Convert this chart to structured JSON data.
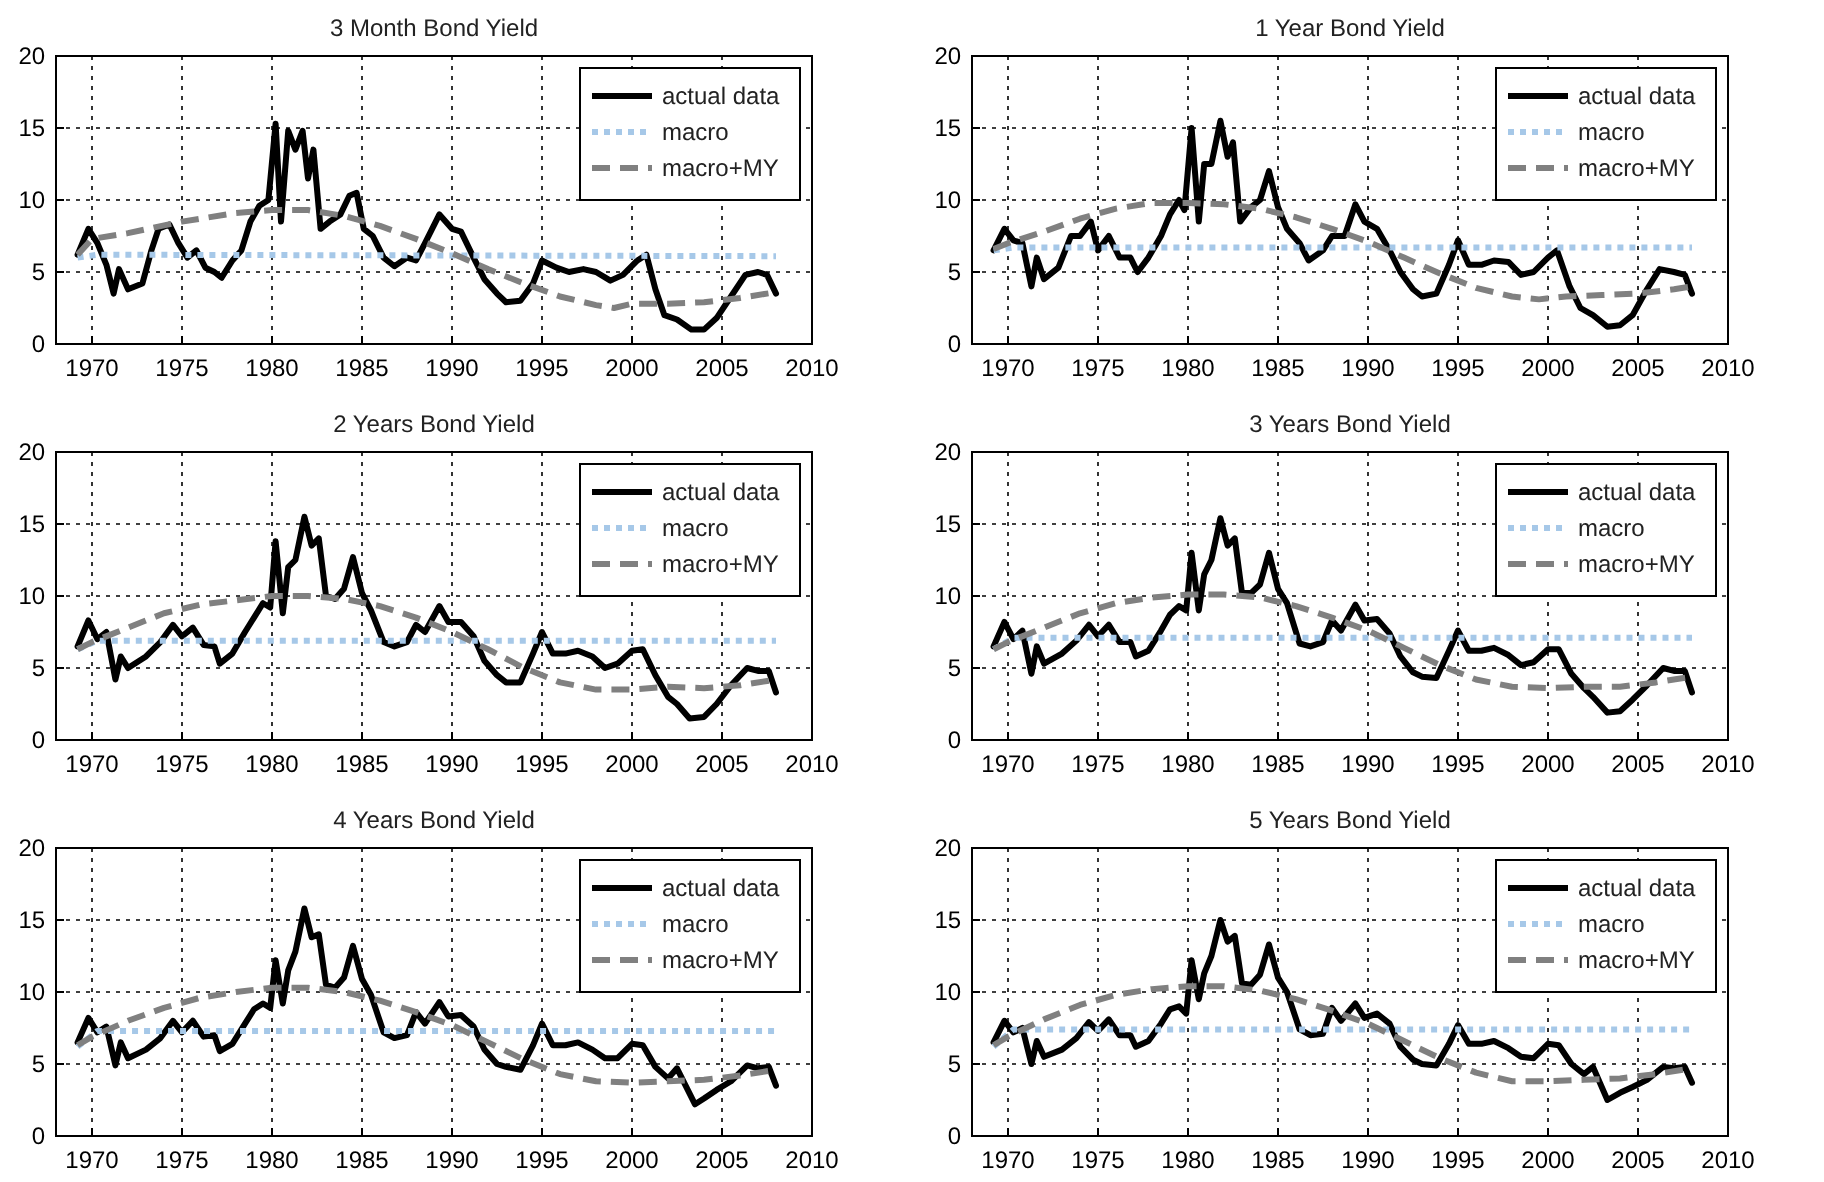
{
  "chart_data": [
    {
      "type": "line",
      "title": "3 Month Bond Yield",
      "xlim": [
        1968,
        2010
      ],
      "xticks": [
        1970,
        1975,
        1980,
        1985,
        1990,
        1995,
        2000,
        2005,
        2010
      ],
      "ylim": [
        0,
        20
      ],
      "yticks": [
        0,
        5,
        10,
        15,
        20
      ],
      "grid": true,
      "legend": "top right",
      "series": [
        {
          "name": "actual data",
          "color": "#000000",
          "line_style": "solid",
          "x": [
            1969.2,
            1969.8,
            1970.3,
            1970.8,
            1971.2,
            1971.5,
            1972,
            1972.8,
            1973.3,
            1973.7,
            1974.3,
            1974.8,
            1975.3,
            1975.8,
            1976.3,
            1976.8,
            1977.2,
            1977.8,
            1978.3,
            1978.8,
            1979.3,
            1979.8,
            1980.2,
            1980.5,
            1980.9,
            1981.3,
            1981.7,
            1982.0,
            1982.3,
            1982.7,
            1983.2,
            1983.8,
            1984.3,
            1984.7,
            1985.1,
            1985.6,
            1986.2,
            1986.8,
            1987.5,
            1988.0,
            1988.5,
            1989.3,
            1990.0,
            1990.5,
            1991.2,
            1991.8,
            1992.5,
            1993.0,
            1993.8,
            1994.5,
            1995.0,
            1995.8,
            1996.5,
            1997.3,
            1998.0,
            1998.8,
            1999.5,
            2000.3,
            2000.8,
            2001.3,
            2001.8,
            2002.5,
            2003.3,
            2004.0,
            2004.7,
            2005.5,
            2006.3,
            2007.0,
            2007.5,
            2008.0
          ],
          "values": [
            6.2,
            8.0,
            7.0,
            5.5,
            3.5,
            5.2,
            3.8,
            4.2,
            6.5,
            8.0,
            8.3,
            7.0,
            6.0,
            6.5,
            5.3,
            5.0,
            4.6,
            5.8,
            6.5,
            8.5,
            9.6,
            10.0,
            15.3,
            8.5,
            14.8,
            13.5,
            14.8,
            11.5,
            13.5,
            8.0,
            8.5,
            9.0,
            10.3,
            10.5,
            8.0,
            7.5,
            6.0,
            5.4,
            6.0,
            5.8,
            7.0,
            9.0,
            8.0,
            7.8,
            6.0,
            4.5,
            3.5,
            2.9,
            3.0,
            4.2,
            5.8,
            5.3,
            5.0,
            5.2,
            5.0,
            4.4,
            4.8,
            5.8,
            6.2,
            3.8,
            2.0,
            1.7,
            1.0,
            1.0,
            1.8,
            3.3,
            4.8,
            5.0,
            4.8,
            3.5
          ]
        },
        {
          "name": "macro",
          "color": "#a6c8e8",
          "line_style": "dotted",
          "x": [
            1969.2,
            1970.3,
            2008
          ],
          "values": [
            6.0,
            6.2,
            6.1
          ]
        },
        {
          "name": "macro+MY",
          "color": "#808080",
          "line_style": "dashed",
          "x": [
            1969.2,
            1970,
            1972,
            1975,
            1978,
            1980,
            1982,
            1984,
            1986,
            1988,
            1990,
            1992,
            1994,
            1996,
            1998,
            1999,
            2000,
            2002,
            2004,
            2006,
            2008
          ],
          "values": [
            6.2,
            7.3,
            7.7,
            8.5,
            9.1,
            9.3,
            9.3,
            8.9,
            8.2,
            7.3,
            6.3,
            5.2,
            4.2,
            3.3,
            2.7,
            2.5,
            2.8,
            2.8,
            2.9,
            3.2,
            3.6
          ]
        }
      ]
    },
    {
      "type": "line",
      "title": "1 Year Bond Yield",
      "xlim": [
        1968,
        2010
      ],
      "xticks": [
        1970,
        1975,
        1980,
        1985,
        1990,
        1995,
        2000,
        2005,
        2010
      ],
      "ylim": [
        0,
        20
      ],
      "yticks": [
        0,
        5,
        10,
        15,
        20
      ],
      "grid": true,
      "legend": "top right",
      "series": [
        {
          "name": "actual data",
          "color": "#000000",
          "line_style": "solid",
          "x": [
            1969.2,
            1969.8,
            1970.3,
            1970.8,
            1971.3,
            1971.6,
            1972,
            1972.8,
            1973.5,
            1974.0,
            1974.6,
            1975.0,
            1975.6,
            1976.2,
            1976.8,
            1977.2,
            1977.8,
            1978.5,
            1979.0,
            1979.5,
            1979.8,
            1980.2,
            1980.6,
            1980.9,
            1981.3,
            1981.8,
            1982.2,
            1982.5,
            1982.9,
            1983.5,
            1984.0,
            1984.5,
            1985.0,
            1985.5,
            1986.2,
            1986.7,
            1987.5,
            1988.0,
            1988.7,
            1989.3,
            1989.8,
            1990.5,
            1991.2,
            1991.8,
            1992.5,
            1993.0,
            1993.8,
            1994.5,
            1995.0,
            1995.6,
            1996.3,
            1997.0,
            1997.8,
            1998.5,
            1999.2,
            2000.0,
            2000.5,
            2001.2,
            2001.8,
            2002.5,
            2003.3,
            2004.0,
            2004.7,
            2005.5,
            2006.2,
            2007.0,
            2007.6,
            2008.0
          ],
          "values": [
            6.5,
            8.0,
            7.2,
            7.0,
            4.0,
            6.0,
            4.5,
            5.3,
            7.5,
            7.5,
            8.5,
            6.5,
            7.5,
            6.0,
            6.0,
            5.0,
            6.0,
            7.5,
            9.0,
            10.0,
            9.3,
            15.0,
            8.5,
            12.5,
            12.5,
            15.5,
            13.0,
            14.0,
            8.5,
            9.5,
            10.0,
            12.0,
            9.5,
            8.0,
            7.0,
            5.8,
            6.5,
            7.5,
            7.5,
            9.7,
            8.5,
            8.0,
            6.5,
            5.0,
            3.8,
            3.3,
            3.5,
            5.5,
            7.2,
            5.5,
            5.5,
            5.8,
            5.7,
            4.8,
            5.0,
            6.0,
            6.5,
            4.0,
            2.5,
            2.0,
            1.2,
            1.3,
            2.0,
            3.8,
            5.2,
            5.0,
            4.8,
            3.5
          ]
        },
        {
          "name": "macro",
          "color": "#a6c8e8",
          "line_style": "dotted",
          "x": [
            1969.2,
            1970.3,
            2008
          ],
          "values": [
            6.5,
            6.7,
            6.7
          ]
        },
        {
          "name": "macro+MY",
          "color": "#808080",
          "line_style": "dashed",
          "x": [
            1969.2,
            1970,
            1972,
            1974,
            1976,
            1978,
            1980,
            1982,
            1984,
            1986,
            1988,
            1990,
            1992,
            1994,
            1996,
            1998,
            1999.5,
            2001,
            2003,
            2005,
            2007,
            2008
          ],
          "values": [
            6.6,
            7.0,
            7.8,
            8.7,
            9.4,
            9.8,
            9.8,
            9.7,
            9.4,
            8.8,
            8.0,
            7.1,
            6.0,
            4.9,
            3.9,
            3.3,
            3.1,
            3.3,
            3.4,
            3.5,
            3.8,
            4.0
          ]
        }
      ]
    },
    {
      "type": "line",
      "title": "2 Years Bond Yield",
      "xlim": [
        1968,
        2010
      ],
      "xticks": [
        1970,
        1975,
        1980,
        1985,
        1990,
        1995,
        2000,
        2005,
        2010
      ],
      "ylim": [
        0,
        20
      ],
      "yticks": [
        0,
        5,
        10,
        15,
        20
      ],
      "grid": true,
      "legend": "top right",
      "series": [
        {
          "name": "actual data",
          "color": "#000000",
          "line_style": "solid",
          "x": [
            1969.2,
            1969.8,
            1970.3,
            1970.8,
            1971.3,
            1971.6,
            1972,
            1973,
            1973.8,
            1974.5,
            1975.0,
            1975.6,
            1976.2,
            1976.8,
            1977.1,
            1977.8,
            1978.5,
            1979.0,
            1979.5,
            1979.9,
            1980.2,
            1980.6,
            1980.9,
            1981.3,
            1981.8,
            1982.2,
            1982.6,
            1983.0,
            1983.5,
            1984.0,
            1984.5,
            1985.0,
            1985.5,
            1986.2,
            1986.8,
            1987.5,
            1988.0,
            1988.5,
            1989.3,
            1989.8,
            1990.5,
            1991.2,
            1991.8,
            1992.5,
            1993.0,
            1993.8,
            1994.5,
            1995.0,
            1995.6,
            1996.3,
            1997.0,
            1997.8,
            1998.5,
            1999.2,
            2000.0,
            2000.6,
            2001.3,
            2002.0,
            2002.5,
            2003.2,
            2004.0,
            2004.7,
            2005.5,
            2006.4,
            2007.0,
            2007.6,
            2008.0
          ],
          "values": [
            6.5,
            8.3,
            7.0,
            7.5,
            4.2,
            5.8,
            5.0,
            5.8,
            6.8,
            8.0,
            7.2,
            7.8,
            6.6,
            6.5,
            5.3,
            6.0,
            7.5,
            8.5,
            9.5,
            9.2,
            13.8,
            8.8,
            12.0,
            12.5,
            15.5,
            13.5,
            14.0,
            10.0,
            9.8,
            10.5,
            12.7,
            10.2,
            9.0,
            6.8,
            6.5,
            6.8,
            8.0,
            7.5,
            9.3,
            8.2,
            8.2,
            7.2,
            5.5,
            4.5,
            4.0,
            4.0,
            6.0,
            7.5,
            6.0,
            6.0,
            6.2,
            5.8,
            5.0,
            5.3,
            6.2,
            6.3,
            4.5,
            3.0,
            2.5,
            1.5,
            1.6,
            2.5,
            3.8,
            5.0,
            4.8,
            4.8,
            3.3
          ]
        },
        {
          "name": "macro",
          "color": "#a6c8e8",
          "line_style": "dotted",
          "x": [
            1969.2,
            1970.3,
            2008
          ],
          "values": [
            6.3,
            6.9,
            6.9
          ]
        },
        {
          "name": "macro+MY",
          "color": "#808080",
          "line_style": "dashed",
          "x": [
            1969.2,
            1970,
            1972,
            1974,
            1976,
            1978,
            1980,
            1982,
            1984,
            1986,
            1988,
            1990,
            1992,
            1994,
            1996,
            1998,
            2000,
            2002,
            2004,
            2006,
            2008
          ],
          "values": [
            6.3,
            6.8,
            7.8,
            8.8,
            9.4,
            9.7,
            10.0,
            10.0,
            9.8,
            9.3,
            8.5,
            7.5,
            6.3,
            5.0,
            4.0,
            3.5,
            3.5,
            3.7,
            3.6,
            3.8,
            4.2
          ]
        }
      ]
    },
    {
      "type": "line",
      "title": "3 Years Bond Yield",
      "xlim": [
        1968,
        2010
      ],
      "xticks": [
        1970,
        1975,
        1980,
        1985,
        1990,
        1995,
        2000,
        2005,
        2010
      ],
      "ylim": [
        0,
        20
      ],
      "yticks": [
        0,
        5,
        10,
        15,
        20
      ],
      "grid": true,
      "legend": "top right",
      "series": [
        {
          "name": "actual data",
          "color": "#000000",
          "line_style": "solid",
          "x": [
            1969.2,
            1969.8,
            1970.3,
            1970.8,
            1971.3,
            1971.6,
            1972,
            1973,
            1973.8,
            1974.5,
            1975.0,
            1975.6,
            1976.2,
            1976.8,
            1977.1,
            1977.8,
            1978.5,
            1979.0,
            1979.5,
            1979.9,
            1980.2,
            1980.6,
            1980.9,
            1981.3,
            1981.8,
            1982.2,
            1982.6,
            1983.0,
            1983.5,
            1984.0,
            1984.5,
            1985.0,
            1985.5,
            1986.2,
            1986.8,
            1987.5,
            1988.0,
            1988.5,
            1989.3,
            1989.8,
            1990.5,
            1991.2,
            1991.8,
            1992.5,
            1993.0,
            1993.8,
            1994.5,
            1995.0,
            1995.6,
            1996.3,
            1997.0,
            1997.8,
            1998.5,
            1999.2,
            2000.0,
            2000.6,
            2001.3,
            2002.0,
            2002.5,
            2003.3,
            2004.0,
            2004.7,
            2005.5,
            2006.4,
            2007.0,
            2007.6,
            2008.0
          ],
          "values": [
            6.5,
            8.2,
            7.0,
            7.6,
            4.6,
            6.5,
            5.3,
            6.0,
            6.9,
            8.0,
            7.2,
            8.0,
            6.8,
            6.8,
            5.8,
            6.2,
            7.6,
            8.7,
            9.3,
            9.0,
            13.0,
            9.0,
            11.5,
            12.5,
            15.4,
            13.5,
            14.0,
            10.2,
            10.2,
            10.8,
            13.0,
            10.5,
            9.5,
            6.7,
            6.5,
            6.8,
            8.3,
            7.6,
            9.4,
            8.3,
            8.4,
            7.4,
            5.8,
            4.7,
            4.4,
            4.3,
            6.2,
            7.6,
            6.2,
            6.2,
            6.4,
            5.9,
            5.2,
            5.4,
            6.3,
            6.3,
            4.6,
            3.6,
            3.0,
            1.9,
            2.0,
            2.8,
            3.8,
            5.0,
            4.8,
            4.8,
            3.3
          ]
        },
        {
          "name": "macro",
          "color": "#a6c8e8",
          "line_style": "dotted",
          "x": [
            1969.2,
            1970.3,
            2008
          ],
          "values": [
            6.3,
            7.1,
            7.1
          ]
        },
        {
          "name": "macro+MY",
          "color": "#808080",
          "line_style": "dashed",
          "x": [
            1969.2,
            1970,
            1972,
            1974,
            1976,
            1978,
            1980,
            1982,
            1984,
            1986,
            1988,
            1990,
            1992,
            1994,
            1996,
            1998,
            2000,
            2002,
            2004,
            2006,
            2008
          ],
          "values": [
            6.3,
            6.8,
            7.8,
            8.8,
            9.5,
            9.9,
            10.1,
            10.1,
            9.9,
            9.3,
            8.5,
            7.6,
            6.4,
            5.2,
            4.2,
            3.7,
            3.6,
            3.7,
            3.7,
            4.0,
            4.4
          ]
        }
      ]
    },
    {
      "type": "line",
      "title": "4 Years Bond Yield",
      "xlim": [
        1968,
        2010
      ],
      "xticks": [
        1970,
        1975,
        1980,
        1985,
        1990,
        1995,
        2000,
        2005,
        2010
      ],
      "ylim": [
        0,
        20
      ],
      "yticks": [
        0,
        5,
        10,
        15,
        20
      ],
      "grid": true,
      "legend": "top right",
      "series": [
        {
          "name": "actual data",
          "color": "#000000",
          "line_style": "solid",
          "x": [
            1969.2,
            1969.8,
            1970.3,
            1970.8,
            1971.3,
            1971.6,
            1972,
            1973,
            1973.8,
            1974.5,
            1975.0,
            1975.6,
            1976.2,
            1976.8,
            1977.1,
            1977.8,
            1978.5,
            1979.0,
            1979.5,
            1979.9,
            1980.2,
            1980.6,
            1980.9,
            1981.3,
            1981.8,
            1982.2,
            1982.6,
            1983.0,
            1983.5,
            1984.0,
            1984.5,
            1985.0,
            1985.5,
            1986.2,
            1986.8,
            1987.5,
            1988.0,
            1988.5,
            1989.3,
            1989.8,
            1990.5,
            1991.2,
            1991.8,
            1992.5,
            1993.0,
            1993.8,
            1994.5,
            1995.0,
            1995.6,
            1996.3,
            1997.0,
            1997.8,
            1998.5,
            1999.2,
            2000.0,
            2000.6,
            2001.3,
            2002.0,
            2002.5,
            2003.5,
            2004.0,
            2004.7,
            2005.5,
            2006.4,
            2007.0,
            2007.6,
            2008.0
          ],
          "values": [
            6.5,
            8.2,
            7.2,
            7.6,
            4.9,
            6.5,
            5.4,
            6.0,
            6.8,
            8.0,
            7.2,
            8.0,
            6.9,
            7.0,
            5.9,
            6.4,
            7.8,
            8.8,
            9.2,
            8.9,
            12.2,
            9.2,
            11.5,
            12.8,
            15.8,
            13.8,
            14.0,
            10.5,
            10.3,
            11.0,
            13.2,
            10.9,
            9.8,
            7.2,
            6.8,
            7.0,
            8.6,
            7.8,
            9.3,
            8.3,
            8.4,
            7.6,
            6.0,
            5.0,
            4.8,
            4.6,
            6.3,
            7.8,
            6.3,
            6.3,
            6.5,
            6.0,
            5.4,
            5.4,
            6.4,
            6.3,
            4.8,
            4.0,
            4.7,
            2.2,
            2.6,
            3.2,
            3.8,
            4.9,
            4.7,
            4.8,
            3.5
          ]
        },
        {
          "name": "macro",
          "color": "#a6c8e8",
          "line_style": "dotted",
          "x": [
            1969.2,
            1970.3,
            2008
          ],
          "values": [
            6.2,
            7.3,
            7.3
          ]
        },
        {
          "name": "macro+MY",
          "color": "#808080",
          "line_style": "dashed",
          "x": [
            1969.2,
            1970,
            1972,
            1974,
            1976,
            1978,
            1980,
            1982,
            1984,
            1986,
            1988,
            1990,
            1992,
            1994,
            1996,
            1998,
            2000,
            2002,
            2004,
            2006,
            2008
          ],
          "values": [
            6.3,
            6.9,
            8.0,
            8.9,
            9.6,
            10.0,
            10.3,
            10.3,
            10.0,
            9.4,
            8.6,
            7.7,
            6.5,
            5.3,
            4.3,
            3.8,
            3.7,
            3.8,
            3.9,
            4.2,
            4.6
          ]
        }
      ]
    },
    {
      "type": "line",
      "title": "5 Years Bond Yield",
      "xlim": [
        1968,
        2010
      ],
      "xticks": [
        1970,
        1975,
        1980,
        1985,
        1990,
        1995,
        2000,
        2005,
        2010
      ],
      "ylim": [
        0,
        20
      ],
      "yticks": [
        0,
        5,
        10,
        15,
        20
      ],
      "grid": true,
      "legend": "top right",
      "series": [
        {
          "name": "actual data",
          "color": "#000000",
          "line_style": "solid",
          "x": [
            1969.2,
            1969.8,
            1970.3,
            1970.8,
            1971.3,
            1971.6,
            1972,
            1973,
            1973.8,
            1974.5,
            1975.0,
            1975.6,
            1976.2,
            1976.8,
            1977.1,
            1977.8,
            1978.5,
            1979.0,
            1979.5,
            1979.9,
            1980.2,
            1980.6,
            1980.9,
            1981.3,
            1981.8,
            1982.2,
            1982.6,
            1983.0,
            1983.5,
            1984.0,
            1984.5,
            1985.0,
            1985.5,
            1986.2,
            1986.8,
            1987.5,
            1988.0,
            1988.5,
            1989.3,
            1989.8,
            1990.5,
            1991.2,
            1991.8,
            1992.5,
            1993.0,
            1993.8,
            1994.5,
            1995.0,
            1995.6,
            1996.3,
            1997.0,
            1997.8,
            1998.5,
            1999.2,
            2000.0,
            2000.6,
            2001.3,
            2002.0,
            2002.5,
            2003.3,
            2004.0,
            2004.7,
            2005.5,
            2006.4,
            2007.0,
            2007.6,
            2008.0
          ],
          "values": [
            6.5,
            8.0,
            7.2,
            7.5,
            5.0,
            6.6,
            5.5,
            6.0,
            6.8,
            7.9,
            7.3,
            8.1,
            7.0,
            7.0,
            6.2,
            6.6,
            7.8,
            8.8,
            9.0,
            8.5,
            12.2,
            9.5,
            11.3,
            12.5,
            15.0,
            13.5,
            13.9,
            10.6,
            10.5,
            11.2,
            13.3,
            11.0,
            10.0,
            7.4,
            7.0,
            7.1,
            8.9,
            8.0,
            9.2,
            8.2,
            8.5,
            7.8,
            6.2,
            5.3,
            5.0,
            4.9,
            6.4,
            7.7,
            6.4,
            6.4,
            6.6,
            6.1,
            5.5,
            5.4,
            6.4,
            6.3,
            5.0,
            4.3,
            4.8,
            2.5,
            3.0,
            3.4,
            3.9,
            4.8,
            4.7,
            4.8,
            3.7
          ]
        },
        {
          "name": "macro",
          "color": "#a6c8e8",
          "line_style": "dotted",
          "x": [
            1969.2,
            1970.3,
            2008
          ],
          "values": [
            6.2,
            7.4,
            7.4
          ]
        },
        {
          "name": "macro+MY",
          "color": "#808080",
          "line_style": "dashed",
          "x": [
            1969.2,
            1970,
            1972,
            1974,
            1976,
            1978,
            1980,
            1982,
            1984,
            1986,
            1988,
            1990,
            1992,
            1994,
            1996,
            1998,
            2000,
            2002,
            2004,
            2006,
            2008
          ],
          "values": [
            6.3,
            6.9,
            8.1,
            9.1,
            9.8,
            10.2,
            10.4,
            10.4,
            10.1,
            9.5,
            8.7,
            7.8,
            6.6,
            5.4,
            4.4,
            3.8,
            3.8,
            3.9,
            4.0,
            4.3,
            4.7
          ]
        }
      ]
    }
  ]
}
